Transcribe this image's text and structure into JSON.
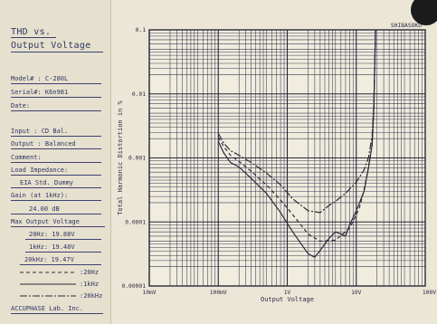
{
  "panel": {
    "title_line1": "THD vs.",
    "title_line2": "Output Voltage",
    "model": "Model#  : C-280L",
    "serial": "Serial#: K6n981",
    "date": "Date:",
    "input": "Input  : CD Bal.",
    "output": "Output : Balanced",
    "comment": "Comment:",
    "load_label": "Load Impedance:",
    "load_value": "EIA Std. Dummy",
    "gain_label": "Gain (at 1kHz):",
    "gain_value": "24.00  dB",
    "max_out_label": "Max Output Voltage",
    "max_20hz": "20Hz: 19.88V",
    "max_1khz": "1kHz: 19.48V",
    "max_20khz": "20kHz: 19.47V",
    "legend_20hz": ":20Hz",
    "legend_1khz": ":1kHz",
    "legend_20khz": ":20kHz",
    "footer": "ACCUPHASE Lab. Inc."
  },
  "brand_mark": "SHIBASOKU",
  "colors": {
    "paper": "#ebe6d6",
    "ink": "#2a2f55",
    "grid": "#3a3a52",
    "curve": "#2a2a3a"
  },
  "chart_data": {
    "type": "line",
    "xlabel": "Output Voltage",
    "ylabel": "Total Harmonic Distortion in %",
    "x_scale": "log",
    "y_scale": "log",
    "xlim": [
      0.01,
      100
    ],
    "ylim": [
      1e-05,
      0.1
    ],
    "x_tick_labels": [
      "10mV",
      "100mV",
      "1V",
      "10V",
      "100V"
    ],
    "y_tick_labels": [
      "0.1",
      "0.01",
      "0.001",
      "0.0001",
      "0.00001"
    ],
    "grid": true,
    "series": [
      {
        "name": "20Hz",
        "style": "dashed",
        "x": [
          0.1,
          0.12,
          0.15,
          0.2,
          0.3,
          0.5,
          0.8,
          1.2,
          2,
          3,
          5,
          8,
          11,
          13,
          15,
          17,
          18,
          19
        ],
        "y": [
          0.0021,
          0.0015,
          0.0011,
          0.00088,
          0.00062,
          0.00038,
          0.00022,
          0.00013,
          6.5e-05,
          5e-05,
          5.2e-05,
          8e-05,
          0.00016,
          0.00032,
          0.0007,
          0.0016,
          0.006,
          0.1
        ]
      },
      {
        "name": "1kHz",
        "style": "solid",
        "x": [
          0.1,
          0.12,
          0.15,
          0.2,
          0.3,
          0.5,
          0.8,
          1.2,
          2,
          2.5,
          3,
          4,
          5,
          7,
          8,
          10,
          13,
          15,
          17,
          18,
          19
        ],
        "y": [
          0.0018,
          0.0012,
          0.00085,
          0.00072,
          0.00048,
          0.00028,
          0.00014,
          7e-05,
          3.2e-05,
          2.8e-05,
          3.6e-05,
          5.5e-05,
          7e-05,
          6e-05,
          9e-05,
          0.00015,
          0.0003,
          0.0007,
          0.0016,
          0.006,
          0.1
        ]
      },
      {
        "name": "20kHz",
        "style": "dash-dot",
        "x": [
          0.1,
          0.12,
          0.15,
          0.2,
          0.3,
          0.5,
          0.8,
          1.2,
          2,
          3,
          4,
          5,
          7,
          10,
          13,
          15,
          17,
          18,
          19
        ],
        "y": [
          0.0024,
          0.0017,
          0.0013,
          0.0011,
          0.00085,
          0.00058,
          0.00038,
          0.00023,
          0.00015,
          0.00014,
          0.00018,
          0.00021,
          0.00028,
          0.00042,
          0.00065,
          0.001,
          0.0022,
          0.007,
          0.1
        ]
      }
    ]
  }
}
